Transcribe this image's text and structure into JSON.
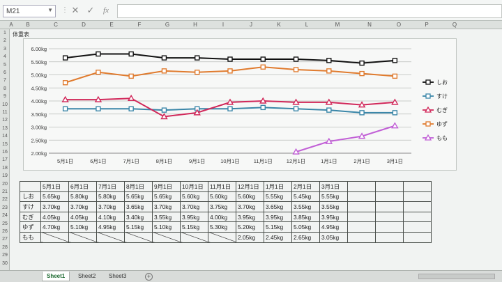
{
  "formula_bar": {
    "name_box": "M21",
    "fx": "fx",
    "cancel": "✕",
    "enter": "✓"
  },
  "columns": [
    "A",
    "B",
    "C",
    "D",
    "E",
    "F",
    "G",
    "H",
    "I",
    "J",
    "K",
    "L",
    "M",
    "N",
    "O",
    "P",
    "Q"
  ],
  "rows": [
    "1",
    "2",
    "3",
    "4",
    "5",
    "6",
    "7",
    "8",
    "9",
    "10",
    "11",
    "12",
    "13",
    "14",
    "15",
    "16",
    "17",
    "18",
    "19",
    "20",
    "21",
    "22",
    "23",
    "24",
    "25",
    "26",
    "27",
    "28",
    "29",
    "30"
  ],
  "sheet_title": "体重表",
  "chart_data": {
    "type": "line",
    "categories": [
      "5月1日",
      "6月1日",
      "7月1日",
      "8月1日",
      "9月1日",
      "10月1日",
      "11月1日",
      "12月1日",
      "1月1日",
      "2月1日",
      "3月1日"
    ],
    "y_ticks": [
      "6.00kg",
      "5.50kg",
      "5.00kg",
      "4.50kg",
      "4.00kg",
      "3.50kg",
      "3.00kg",
      "2.50kg",
      "2.00kg"
    ],
    "ylim": [
      2.0,
      6.0
    ],
    "grid": true,
    "legend_position": "right",
    "series": [
      {
        "name": "しお",
        "color": "#111111",
        "marker": "square",
        "values": [
          5.65,
          5.8,
          5.8,
          5.65,
          5.65,
          5.6,
          5.6,
          5.6,
          5.55,
          5.45,
          5.55
        ]
      },
      {
        "name": "すけ",
        "color": "#3a86a8",
        "marker": "square",
        "values": [
          3.7,
          3.7,
          3.7,
          3.65,
          3.7,
          3.7,
          3.75,
          3.7,
          3.65,
          3.55,
          3.55
        ]
      },
      {
        "name": "むぎ",
        "color": "#d1285a",
        "marker": "triangle",
        "values": [
          4.05,
          4.05,
          4.1,
          3.4,
          3.55,
          3.95,
          4.0,
          3.95,
          3.95,
          3.85,
          3.95
        ]
      },
      {
        "name": "ゆず",
        "color": "#e07b2e",
        "marker": "square",
        "values": [
          4.7,
          5.1,
          4.95,
          5.15,
          5.1,
          5.15,
          5.3,
          5.2,
          5.15,
          5.05,
          4.95
        ]
      },
      {
        "name": "もも",
        "color": "#c15fd6",
        "marker": "triangle",
        "values": [
          null,
          null,
          null,
          null,
          null,
          null,
          null,
          2.05,
          2.45,
          2.65,
          3.05
        ]
      }
    ]
  },
  "table": {
    "headers": [
      "5月1日",
      "6月1日",
      "7月1日",
      "8月1日",
      "9月1日",
      "10月1日",
      "11月1日",
      "12月1日",
      "1月1日",
      "2月1日",
      "3月1日"
    ],
    "rows": [
      {
        "label": "しお",
        "cells": [
          "5.65kg",
          "5.80kg",
          "5.80kg",
          "5.65kg",
          "5.65kg",
          "5.60kg",
          "5.60kg",
          "5.60kg",
          "5.55kg",
          "5.45kg",
          "5.55kg"
        ]
      },
      {
        "label": "すけ",
        "cells": [
          "3.70kg",
          "3.70kg",
          "3.70kg",
          "3.65kg",
          "3.70kg",
          "3.70kg",
          "3.75kg",
          "3.70kg",
          "3.65kg",
          "3.55kg",
          "3.55kg"
        ]
      },
      {
        "label": "むぎ",
        "cells": [
          "4.05kg",
          "4.05kg",
          "4.10kg",
          "3.40kg",
          "3.55kg",
          "3.95kg",
          "4.00kg",
          "3.95kg",
          "3.95kg",
          "3.85kg",
          "3.95kg"
        ]
      },
      {
        "label": "ゆず",
        "cells": [
          "4.70kg",
          "5.10kg",
          "4.95kg",
          "5.15kg",
          "5.10kg",
          "5.15kg",
          "5.30kg",
          "5.20kg",
          "5.15kg",
          "5.05kg",
          "4.95kg"
        ]
      },
      {
        "label": "もも",
        "cells": [
          "",
          "",
          "",
          "",
          "",
          "",
          "",
          "2.05kg",
          "2.45kg",
          "2.65kg",
          "3.05kg"
        ]
      }
    ]
  },
  "sheet_tabs": [
    "Sheet1",
    "Sheet2",
    "Sheet3"
  ],
  "add_sheet": "+"
}
